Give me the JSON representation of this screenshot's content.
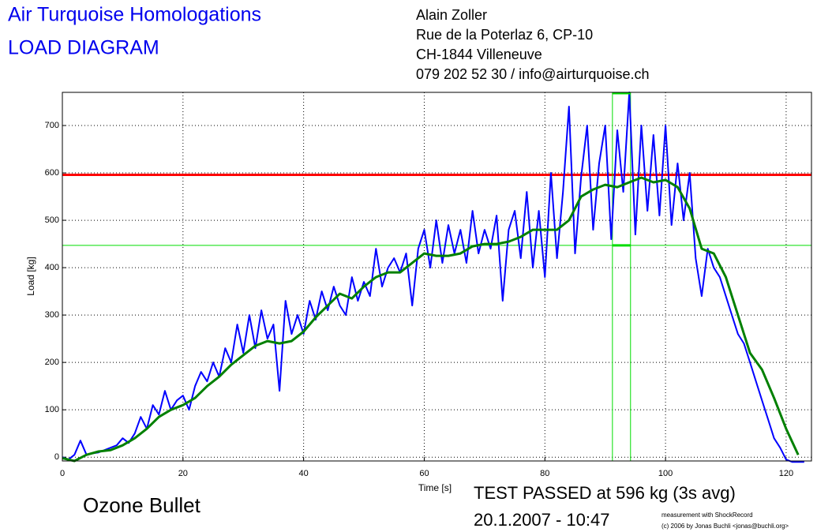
{
  "chart_data": {
    "type": "line",
    "title": "Air Turquoise Homologations",
    "subtitle": "LOAD DIAGRAM",
    "address": [
      "Alain Zoller",
      "Rue de la Poterlaz 6, CP-10",
      "CH-1844 Villeneuve",
      "079 202 52 30 / info@airturquoise.ch"
    ],
    "xlabel": "Time [s]",
    "ylabel": "Load [kg]",
    "result": "TEST PASSED at 596 kg (3s avg)",
    "date": "20.1.2007 - 10:47",
    "glider": "Ozone Bullet",
    "credit": [
      "measurement with ShockRecord",
      "(c) 2006 by Jonas Buchli <jonas@buchli.org>"
    ],
    "xlim": [
      0,
      124.2
    ],
    "ylim": [
      -8,
      770
    ],
    "xticks": [
      0,
      20,
      40,
      60,
      80,
      100,
      120
    ],
    "yticks": [
      0,
      100,
      200,
      300,
      400,
      500,
      600,
      700
    ],
    "grid": true,
    "series": [
      {
        "color": "#0000ff",
        "x": [
          0,
          1,
          2,
          3,
          4,
          5,
          6,
          7,
          8,
          9,
          10,
          11,
          12,
          13,
          14,
          15,
          16,
          17,
          18,
          19,
          20,
          21,
          22,
          23,
          24,
          25,
          26,
          27,
          28,
          29,
          30,
          31,
          32,
          33,
          34,
          35,
          36,
          37,
          38,
          39,
          40,
          41,
          42,
          43,
          44,
          45,
          46,
          47,
          48,
          49,
          50,
          51,
          52,
          53,
          54,
          55,
          56,
          57,
          58,
          59,
          60,
          61,
          62,
          63,
          64,
          65,
          66,
          67,
          68,
          69,
          70,
          71,
          72,
          73,
          74,
          75,
          76,
          77,
          78,
          79,
          80,
          81,
          82,
          83,
          84,
          85,
          86,
          87,
          88,
          89,
          90,
          91,
          92,
          93,
          94,
          95,
          96,
          97,
          98,
          99,
          100,
          101,
          102,
          103,
          104,
          105,
          106,
          107,
          108,
          109,
          110,
          111,
          112,
          113,
          114,
          115,
          116,
          117,
          118,
          119,
          120,
          121,
          122,
          123
        ],
        "values": [
          0,
          -5,
          5,
          35,
          5,
          8,
          10,
          15,
          20,
          25,
          40,
          30,
          50,
          85,
          60,
          110,
          90,
          140,
          100,
          120,
          130,
          100,
          150,
          180,
          160,
          200,
          170,
          230,
          200,
          280,
          220,
          300,
          230,
          310,
          250,
          280,
          140,
          330,
          260,
          300,
          260,
          330,
          290,
          350,
          310,
          360,
          320,
          300,
          380,
          330,
          370,
          340,
          440,
          360,
          400,
          420,
          390,
          430,
          320,
          440,
          480,
          400,
          500,
          410,
          490,
          430,
          480,
          410,
          520,
          430,
          480,
          440,
          510,
          330,
          480,
          520,
          420,
          560,
          400,
          520,
          380,
          600,
          420,
          560,
          740,
          430,
          590,
          700,
          480,
          620,
          700,
          460,
          690,
          560,
          770,
          470,
          700,
          520,
          680,
          510,
          700,
          490,
          620,
          500,
          600,
          420,
          340,
          440,
          400,
          380,
          340,
          300,
          260,
          240,
          200,
          160,
          120,
          80,
          40,
          20,
          -5,
          -10,
          -10,
          -10
        ]
      },
      {
        "color": "#008000",
        "x": [
          0,
          2,
          4,
          6,
          8,
          10,
          12,
          14,
          16,
          18,
          20,
          22,
          24,
          26,
          28,
          30,
          32,
          34,
          36,
          38,
          40,
          42,
          44,
          46,
          48,
          50,
          52,
          54,
          56,
          58,
          60,
          62,
          64,
          66,
          68,
          70,
          72,
          74,
          76,
          78,
          80,
          82,
          84,
          86,
          88,
          90,
          92,
          94,
          96,
          98,
          100,
          102,
          104,
          106,
          108,
          110,
          112,
          114,
          116,
          118,
          120,
          122
        ],
        "values": [
          -2,
          -8,
          5,
          12,
          15,
          25,
          40,
          60,
          85,
          100,
          110,
          125,
          150,
          170,
          195,
          215,
          235,
          245,
          240,
          245,
          265,
          295,
          320,
          345,
          335,
          360,
          380,
          390,
          390,
          410,
          430,
          425,
          425,
          430,
          445,
          450,
          450,
          455,
          465,
          480,
          480,
          480,
          500,
          550,
          565,
          575,
          570,
          580,
          590,
          580,
          585,
          570,
          525,
          440,
          430,
          380,
          300,
          220,
          185,
          125,
          60,
          5
        ]
      }
    ],
    "threshold": {
      "value": 596,
      "color": "#ff0000"
    },
    "avg_window": {
      "x": [
        91.2,
        94.2
      ],
      "level": 447,
      "color": "#00dd00"
    }
  }
}
